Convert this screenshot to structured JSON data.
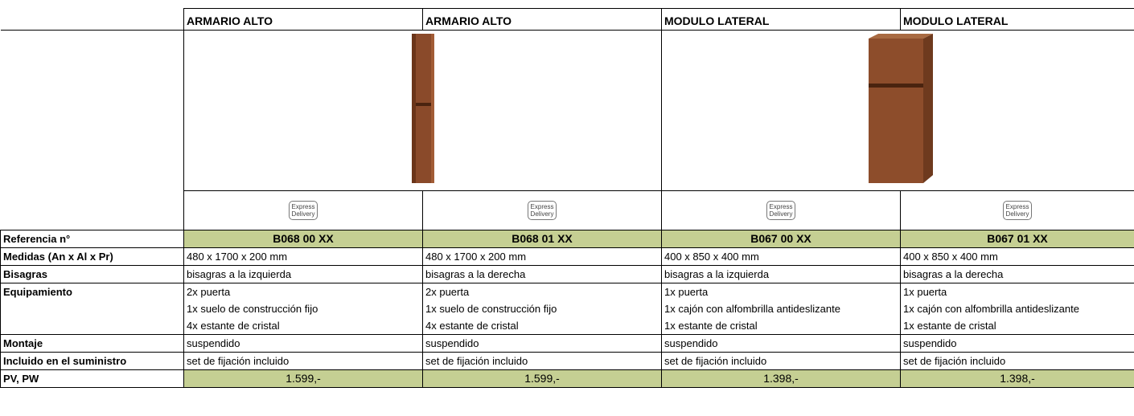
{
  "table": {
    "columns": [
      {
        "title": "ARMARIO ALTO",
        "badge": [
          "Express",
          "Delivery"
        ]
      },
      {
        "title": "ARMARIO ALTO",
        "badge": [
          "Express",
          "Delivery"
        ]
      },
      {
        "title": "MODULO LATERAL",
        "badge": [
          "Express",
          "Delivery"
        ]
      },
      {
        "title": "MODULO LATERAL",
        "badge": [
          "Express",
          "Delivery"
        ]
      }
    ],
    "rows": [
      {
        "label": "Referencia n°",
        "cells": [
          [
            "B068 00 XX"
          ],
          [
            "B068 01 XX"
          ],
          [
            "B067 00 XX"
          ],
          [
            "B067 01 XX"
          ]
        ]
      },
      {
        "label": "Medidas (An x Al x Pr)",
        "cells": [
          [
            "480 x 1700 x 200 mm"
          ],
          [
            "480 x 1700 x 200 mm"
          ],
          [
            "400 x 850 x 400 mm"
          ],
          [
            "400 x 850 x 400 mm"
          ]
        ]
      },
      {
        "label": "Bisagras",
        "cells": [
          [
            "bisagras a la izquierda"
          ],
          [
            "bisagras a la derecha"
          ],
          [
            "bisagras a la izquierda"
          ],
          [
            "bisagras a la derecha"
          ]
        ]
      },
      {
        "label": "Equipamiento",
        "cells": [
          [
            "2x puerta",
            "1x suelo de construcción fijo",
            "4x estante de cristal"
          ],
          [
            "2x puerta",
            "1x suelo de construcción fijo",
            "4x estante de cristal"
          ],
          [
            "1x puerta",
            "1x cajón con alfombrilla antideslizante",
            "1x estante de cristal"
          ],
          [
            "1x puerta",
            "1x cajón con alfombrilla antideslizante",
            "1x estante de cristal"
          ]
        ]
      },
      {
        "label": "Montaje",
        "cells": [
          [
            "suspendido"
          ],
          [
            "suspendido"
          ],
          [
            "suspendido"
          ],
          [
            "suspendido"
          ]
        ]
      },
      {
        "label": "Incluido en el suministro",
        "cells": [
          [
            "set de fijación incluido"
          ],
          [
            "set de fijación incluido"
          ],
          [
            "set de fijación incluido"
          ],
          [
            "set de fijación incluido"
          ]
        ]
      },
      {
        "label": "PV, PW",
        "cells": [
          [
            "1.599,-"
          ],
          [
            "1.599,-"
          ],
          [
            "1.398,-"
          ],
          [
            "1.398,-"
          ]
        ]
      }
    ]
  }
}
